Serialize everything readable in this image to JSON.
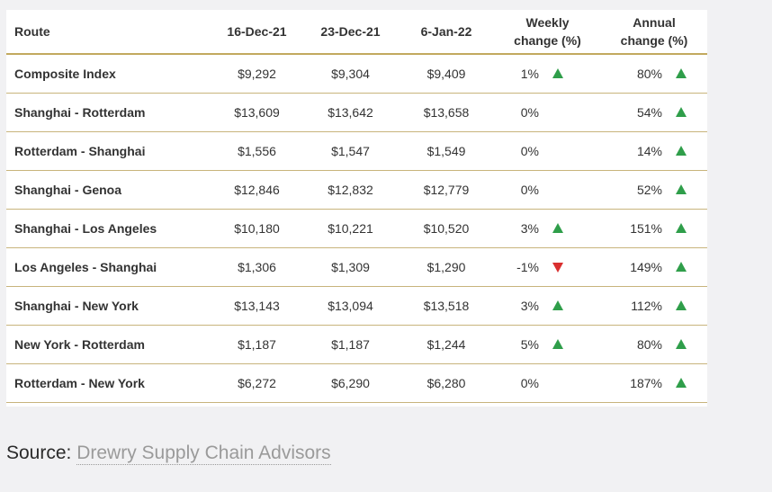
{
  "table": {
    "headers": {
      "route": "Route",
      "date1": "16-Dec-21",
      "date2": "23-Dec-21",
      "date3": "6-Jan-22",
      "weekly_line1": "Weekly",
      "weekly_line2": "change (%)",
      "annual_line1": "Annual",
      "annual_line2": "change (%)"
    },
    "rows": [
      {
        "route": "Composite Index",
        "d1": "$9,292",
        "d2": "$9,304",
        "d3": "$9,409",
        "weekly": "1%",
        "weekly_dir": "up",
        "annual": "80%",
        "annual_dir": "up"
      },
      {
        "route": "Shanghai - Rotterdam",
        "d1": "$13,609",
        "d2": "$13,642",
        "d3": "$13,658",
        "weekly": "0%",
        "weekly_dir": "none",
        "annual": "54%",
        "annual_dir": "up"
      },
      {
        "route": "Rotterdam - Shanghai",
        "d1": "$1,556",
        "d2": "$1,547",
        "d3": "$1,549",
        "weekly": "0%",
        "weekly_dir": "none",
        "annual": "14%",
        "annual_dir": "up"
      },
      {
        "route": "Shanghai - Genoa",
        "d1": "$12,846",
        "d2": "$12,832",
        "d3": "$12,779",
        "weekly": "0%",
        "weekly_dir": "none",
        "annual": "52%",
        "annual_dir": "up"
      },
      {
        "route": "Shanghai - Los Angeles",
        "d1": "$10,180",
        "d2": "$10,221",
        "d3": "$10,520",
        "weekly": "3%",
        "weekly_dir": "up",
        "annual": "151%",
        "annual_dir": "up"
      },
      {
        "route": "Los Angeles - Shanghai",
        "d1": "$1,306",
        "d2": "$1,309",
        "d3": "$1,290",
        "weekly": "-1%",
        "weekly_dir": "down",
        "annual": "149%",
        "annual_dir": "up"
      },
      {
        "route": "Shanghai - New York",
        "d1": "$13,143",
        "d2": "$13,094",
        "d3": "$13,518",
        "weekly": "3%",
        "weekly_dir": "up",
        "annual": "112%",
        "annual_dir": "up"
      },
      {
        "route": "New York - Rotterdam",
        "d1": "$1,187",
        "d2": "$1,187",
        "d3": "$1,244",
        "weekly": "5%",
        "weekly_dir": "up",
        "annual": "80%",
        "annual_dir": "up"
      },
      {
        "route": "Rotterdam - New York",
        "d1": "$6,272",
        "d2": "$6,290",
        "d3": "$6,280",
        "weekly": "0%",
        "weekly_dir": "none",
        "annual": "187%",
        "annual_dir": "up"
      }
    ]
  },
  "source": {
    "label": "Source:",
    "link_text": "Drewry Supply Chain Advisors"
  },
  "colors": {
    "up": "#2f9e4a",
    "down": "#d92f2f",
    "rule": "#c2a95e"
  },
  "icons": {
    "up": "up-arrow-icon",
    "down": "down-arrow-icon"
  }
}
